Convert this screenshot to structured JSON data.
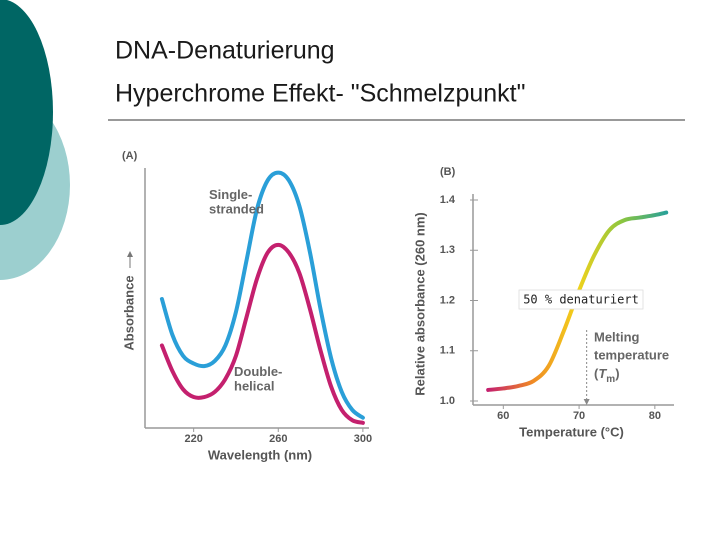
{
  "title": [
    "DNA-Denaturierung",
    "Hyperchrome Effekt- \"Schmelzpunkt\""
  ],
  "chart_data": [
    {
      "type": "line",
      "panel": "(A)",
      "xlabel": "Wavelength (nm)",
      "ylabel": "Absorbance",
      "x": [
        205,
        210,
        215,
        220,
        225,
        230,
        235,
        240,
        245,
        250,
        255,
        260,
        265,
        270,
        275,
        280,
        285,
        290,
        295,
        300
      ],
      "xlim": [
        197,
        301
      ],
      "ylim": [
        0,
        1
      ],
      "xticks": [
        220,
        260,
        300
      ],
      "series": [
        {
          "name": "Single-\nstranded",
          "color": "#2a9fd8",
          "values": [
            0.5,
            0.36,
            0.28,
            0.25,
            0.24,
            0.26,
            0.32,
            0.45,
            0.65,
            0.85,
            0.96,
            0.99,
            0.96,
            0.86,
            0.68,
            0.46,
            0.27,
            0.14,
            0.07,
            0.04
          ]
        },
        {
          "name": "Double-\nhelical",
          "color": "#c4206e",
          "values": [
            0.32,
            0.22,
            0.15,
            0.12,
            0.12,
            0.14,
            0.19,
            0.28,
            0.43,
            0.58,
            0.68,
            0.71,
            0.68,
            0.6,
            0.46,
            0.3,
            0.16,
            0.07,
            0.03,
            0.02
          ]
        }
      ]
    },
    {
      "type": "line",
      "panel": "(B)",
      "xlabel": "Temperature (°C)",
      "ylabel": "Relative absorbance (260 nm)",
      "x": [
        58,
        60,
        62,
        64,
        66,
        68,
        70,
        72,
        74,
        76,
        78,
        80,
        81.5
      ],
      "xlim": [
        56,
        82
      ],
      "ylim": [
        1,
        1.4
      ],
      "xticks": [
        60,
        70,
        80
      ],
      "yticks": [
        {
          "value": 1,
          "label": "1.0"
        },
        1.1,
        1.2,
        1.3,
        1.4
      ],
      "series": [
        {
          "stroke_gradient": [
            "#c4206e",
            "#f08a24",
            "#f2d21b",
            "#8cc63f",
            "#2aa198"
          ],
          "values": [
            1.022,
            1.025,
            1.03,
            1.04,
            1.07,
            1.14,
            1.22,
            1.29,
            1.34,
            1.36,
            1.365,
            1.37,
            1.375
          ]
        }
      ],
      "melting_temperature": 71,
      "melting_label": [
        "Melting",
        "temperature"
      ],
      "tm_symbol": [
        "(",
        "T",
        "m",
        ")"
      ],
      "box_annotation": "50 % denaturiert"
    }
  ]
}
